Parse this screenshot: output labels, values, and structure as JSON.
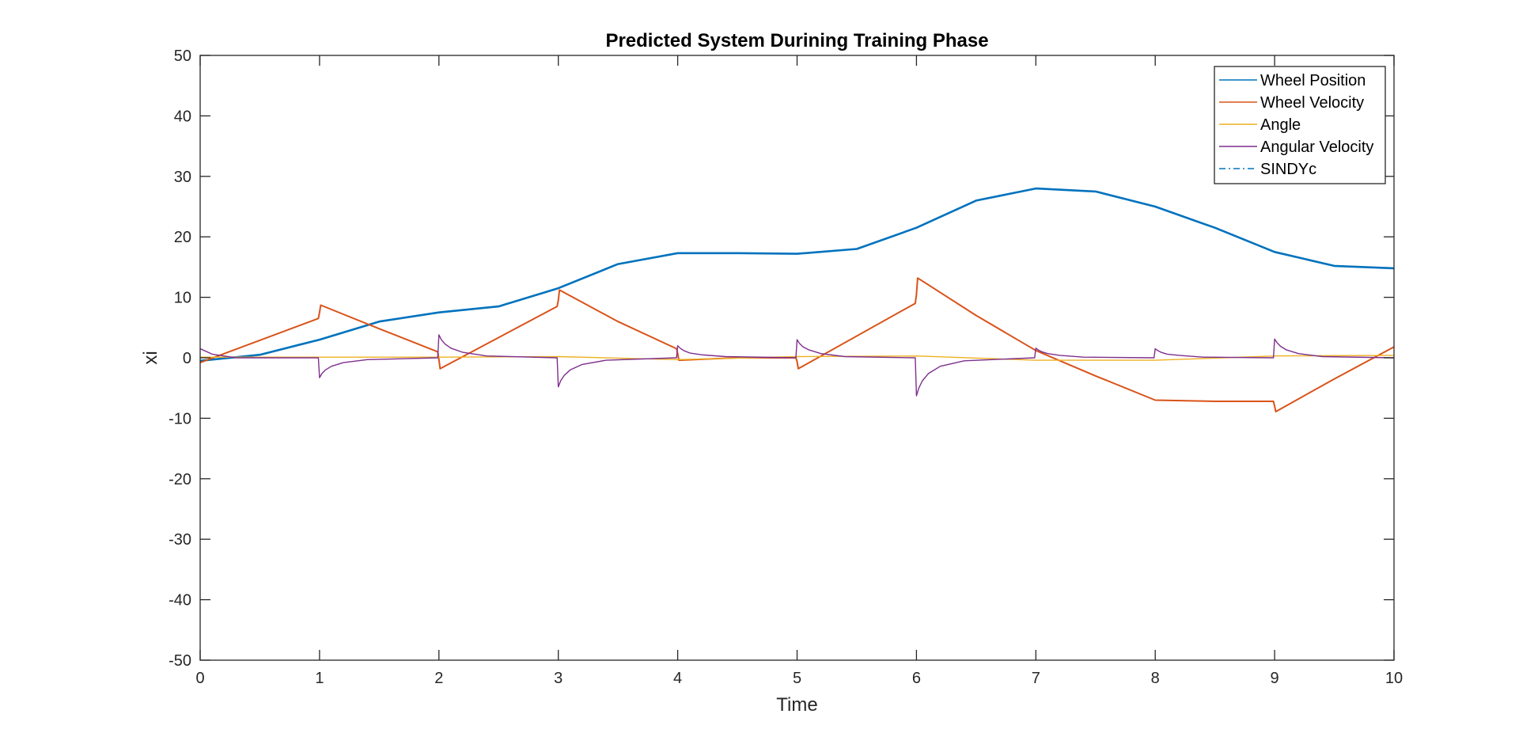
{
  "chart_data": {
    "type": "line",
    "title": "Predicted System Durining Training Phase",
    "xlabel": "Time",
    "ylabel": "xi",
    "xlim": [
      0,
      10
    ],
    "ylim": [
      -50,
      50
    ],
    "xticks": [
      0,
      1,
      2,
      3,
      4,
      5,
      6,
      7,
      8,
      9,
      10
    ],
    "xtick_labels": [
      "0",
      "1",
      "2",
      "3",
      "4",
      "5",
      "6",
      "7",
      "8",
      "9",
      "10"
    ],
    "yticks": [
      -50,
      -40,
      -30,
      -20,
      -10,
      0,
      10,
      20,
      30,
      40,
      50
    ],
    "ytick_labels": [
      "-50",
      "-40",
      "-30",
      "-20",
      "-10",
      "0",
      "10",
      "20",
      "30",
      "40",
      "50"
    ],
    "grid": false,
    "legend_position": "top-right",
    "series": [
      {
        "name": "Wheel Position",
        "color": "#0072BD",
        "style": "solid",
        "x": [
          0,
          0.5,
          1,
          1.5,
          2,
          2.5,
          3,
          3.5,
          4,
          4.5,
          5,
          5.5,
          6,
          6.5,
          7,
          7.5,
          8,
          8.5,
          9,
          9.5,
          10
        ],
        "y": [
          -0.5,
          0.5,
          3,
          6,
          7.5,
          8.5,
          11.5,
          15.5,
          17.3,
          17.3,
          17.2,
          18,
          21.5,
          26,
          28,
          27.5,
          25,
          21.5,
          17.5,
          15.2,
          14.8
        ]
      },
      {
        "name": "Wheel Velocity",
        "color": "#D95319",
        "style": "solid",
        "x": [
          0,
          0.99,
          1.0,
          1.01,
          1.5,
          1.99,
          2.0,
          2.01,
          2.99,
          3.0,
          3.01,
          3.5,
          3.99,
          4.0,
          4.01,
          4.5,
          4.99,
          5.0,
          5.01,
          5.99,
          6.0,
          6.01,
          6.5,
          7.0,
          7.5,
          8.0,
          8.5,
          8.99,
          9.0,
          9.01,
          9.5,
          10.0
        ],
        "y": [
          -0.8,
          6.5,
          7.5,
          8.7,
          4.8,
          1.0,
          -0.3,
          -1.8,
          8.5,
          9.5,
          11.2,
          6.0,
          1.5,
          0.7,
          -0.4,
          0.0,
          0.0,
          -0.6,
          -1.8,
          9.0,
          10.5,
          13.2,
          7.0,
          1.2,
          -3.0,
          -7.0,
          -7.2,
          -7.2,
          -8.0,
          -8.9,
          -3.5,
          1.8
        ]
      },
      {
        "name": "Angle",
        "color": "#EDB120",
        "style": "solid",
        "x": [
          0,
          1,
          2,
          3,
          4,
          5,
          6,
          7,
          8,
          9,
          10
        ],
        "y": [
          0.1,
          0.1,
          0.1,
          0.2,
          -0.3,
          0.2,
          0.3,
          -0.4,
          -0.4,
          0.3,
          0.4
        ]
      },
      {
        "name": "Angular Velocity",
        "color": "#7E2F8E",
        "style": "solid",
        "x": [
          0,
          0.1,
          0.3,
          0.99,
          1.0,
          1.02,
          1.05,
          1.1,
          1.2,
          1.4,
          1.99,
          2.0,
          2.02,
          2.05,
          2.1,
          2.2,
          2.4,
          2.99,
          3.0,
          3.02,
          3.05,
          3.1,
          3.2,
          3.4,
          3.99,
          4.0,
          4.02,
          4.05,
          4.1,
          4.2,
          4.4,
          4.99,
          5.0,
          5.02,
          5.05,
          5.1,
          5.2,
          5.4,
          5.99,
          6.0,
          6.02,
          6.05,
          6.1,
          6.2,
          6.4,
          6.99,
          7.0,
          7.02,
          7.05,
          7.1,
          7.2,
          7.4,
          7.99,
          8.0,
          8.02,
          8.05,
          8.1,
          8.2,
          8.4,
          8.99,
          9.0,
          9.02,
          9.05,
          9.1,
          9.2,
          9.4,
          10.0
        ],
        "y": [
          1.5,
          0.6,
          0.0,
          0.0,
          -3.3,
          -2.6,
          -2.0,
          -1.4,
          -0.8,
          -0.3,
          0.0,
          3.8,
          3.0,
          2.3,
          1.6,
          0.9,
          0.3,
          0.0,
          -4.8,
          -3.8,
          -2.9,
          -2.0,
          -1.1,
          -0.4,
          0.0,
          2.0,
          1.6,
          1.2,
          0.8,
          0.5,
          0.2,
          0.0,
          3.0,
          2.4,
          1.8,
          1.3,
          0.7,
          0.2,
          0.0,
          -6.3,
          -5.0,
          -3.8,
          -2.6,
          -1.4,
          -0.5,
          0.0,
          1.6,
          1.3,
          1.0,
          0.7,
          0.4,
          0.1,
          0.0,
          1.5,
          1.2,
          0.9,
          0.6,
          0.4,
          0.1,
          0.0,
          3.1,
          2.5,
          1.9,
          1.3,
          0.7,
          0.2,
          0.0
        ]
      },
      {
        "name": "SINDYc",
        "color": "#0072BD",
        "style": "dashdot",
        "x": [],
        "y": []
      }
    ]
  }
}
